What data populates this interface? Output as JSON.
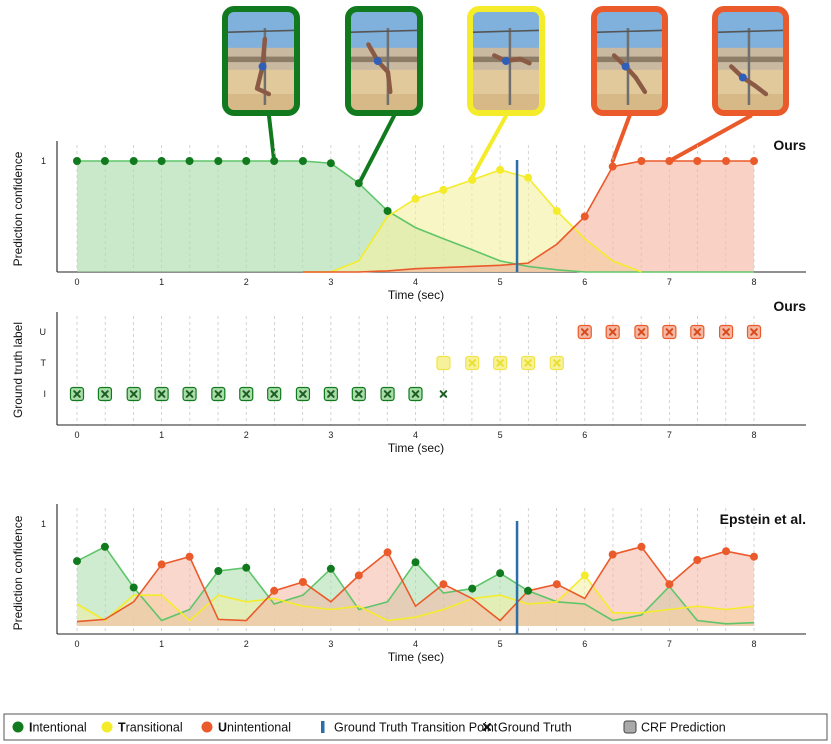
{
  "chart_data": [
    {
      "panel": "top",
      "type": "area",
      "title": "Ours",
      "xlabel": "Time (sec)",
      "ylabel": "Prediction confidence",
      "xlim": [
        0,
        8
      ],
      "ylim": [
        0,
        1
      ],
      "yticks": [
        {
          "v": 1,
          "label": "1"
        }
      ],
      "xticks": [
        "0",
        "1",
        "2",
        "3",
        "4",
        "5",
        "6",
        "7",
        "8"
      ],
      "transition_x": 5.2,
      "series": [
        {
          "key": "intentional",
          "x": [
            0,
            0.33,
            0.67,
            1,
            1.33,
            1.67,
            2,
            2.33,
            2.67,
            3,
            3.33,
            3.67,
            4,
            4.33,
            4.67,
            5,
            5.33,
            5.67,
            6,
            6.33,
            6.67,
            7,
            7.33,
            7.67,
            8
          ],
          "y": [
            1,
            1,
            1,
            1,
            1,
            1,
            1,
            1,
            1,
            0.98,
            0.8,
            0.55,
            0.4,
            0.3,
            0.2,
            0.1,
            0.05,
            0.02,
            0,
            0,
            0,
            0,
            0,
            0,
            0
          ]
        },
        {
          "key": "transitional",
          "x": [
            2.67,
            3,
            3.33,
            3.67,
            4,
            4.33,
            4.67,
            5,
            5.33,
            5.67,
            6,
            6.33,
            6.67
          ],
          "y": [
            0,
            0,
            0.1,
            0.5,
            0.66,
            0.74,
            0.83,
            0.92,
            0.85,
            0.55,
            0.3,
            0.1,
            0
          ]
        },
        {
          "key": "unintentional",
          "x": [
            2.67,
            3,
            3.33,
            3.67,
            4,
            4.33,
            4.67,
            5,
            5.33,
            5.67,
            6,
            6.33,
            6.67,
            7,
            7.33,
            7.67,
            8
          ],
          "y": [
            0,
            0,
            0,
            0.01,
            0.03,
            0.04,
            0.05,
            0.06,
            0.08,
            0.25,
            0.5,
            0.95,
            1,
            1,
            1,
            1,
            1
          ]
        }
      ],
      "marker_series": {
        "intentional": [
          0,
          0.33,
          0.67,
          1,
          1.33,
          1.67,
          2,
          2.33,
          2.67,
          3,
          3.33,
          3.67
        ],
        "transitional": [
          4,
          4.33,
          4.67,
          5,
          5.33,
          5.67
        ],
        "unintentional": [
          6,
          6.33,
          6.67,
          7,
          7.33,
          7.67,
          8
        ]
      }
    },
    {
      "panel": "middle",
      "type": "scatter",
      "title": "Ours",
      "xlabel": "Time (sec)",
      "ylabel": "Ground truth label",
      "xlim": [
        0,
        8
      ],
      "yticks": [
        "I",
        "T",
        "U"
      ],
      "xticks": [
        "0",
        "1",
        "2",
        "3",
        "4",
        "5",
        "6",
        "7",
        "8"
      ],
      "crf_prediction": [
        {
          "label": "I",
          "x": [
            0,
            0.33,
            0.67,
            1,
            1.33,
            1.67,
            2,
            2.33,
            2.67,
            3,
            3.33,
            3.67,
            4
          ]
        },
        {
          "label": "T",
          "x": [
            4.33,
            4.67,
            5,
            5.33,
            5.67
          ]
        },
        {
          "label": "U",
          "x": [
            6,
            6.33,
            6.67,
            7,
            7.33,
            7.67,
            8
          ]
        }
      ],
      "ground_truth": [
        {
          "label": "I",
          "x": [
            0,
            0.33,
            0.67,
            1,
            1.33,
            1.67,
            2,
            2.33,
            2.67,
            3,
            3.33,
            3.67,
            4,
            4.33
          ]
        },
        {
          "label": "T",
          "x": [
            4.67,
            5,
            5.33,
            5.67
          ]
        },
        {
          "label": "U",
          "x": [
            6,
            6.33,
            6.67,
            7,
            7.33,
            7.67,
            8
          ]
        }
      ]
    },
    {
      "panel": "bottom",
      "type": "area",
      "title": "Epstein et al.",
      "xlabel": "Time (sec)",
      "ylabel": "Prediction confidence",
      "xlim": [
        0,
        8
      ],
      "ylim": [
        0,
        1
      ],
      "yticks": [
        {
          "v": 1,
          "label": "1"
        }
      ],
      "xticks": [
        "0",
        "1",
        "2",
        "3",
        "4",
        "5",
        "6",
        "7",
        "8"
      ],
      "transition_x": 5.2,
      "x": [
        0,
        0.33,
        0.67,
        1,
        1.33,
        1.67,
        2,
        2.33,
        2.67,
        3,
        3.33,
        3.67,
        4,
        4.33,
        4.67,
        5,
        5.33,
        5.67,
        6,
        6.33,
        6.67,
        7,
        7.33,
        7.67,
        8
      ],
      "series": [
        {
          "key": "intentional",
          "y": [
            0.59,
            0.72,
            0.35,
            0.05,
            0.15,
            0.5,
            0.53,
            0.2,
            0.28,
            0.52,
            0.15,
            0.22,
            0.58,
            0.3,
            0.34,
            0.48,
            0.32,
            0.22,
            0.2,
            0.05,
            0.1,
            0.36,
            0.05,
            0.02,
            0.03
          ]
        },
        {
          "key": "transitional",
          "y": [
            0.2,
            0.05,
            0.28,
            0.28,
            0.05,
            0.28,
            0.22,
            0.25,
            0.18,
            0.15,
            0.18,
            0.05,
            0.08,
            0.15,
            0.25,
            0.28,
            0.2,
            0.22,
            0.46,
            0.12,
            0.12,
            0.15,
            0.18,
            0.15,
            0.18
          ]
        },
        {
          "key": "unintentional",
          "y": [
            0.04,
            0.06,
            0.22,
            0.56,
            0.63,
            0.06,
            0.05,
            0.32,
            0.4,
            0.22,
            0.46,
            0.67,
            0.18,
            0.38,
            0.25,
            0.05,
            0.32,
            0.38,
            0.25,
            0.65,
            0.72,
            0.38,
            0.6,
            0.68,
            0.63
          ]
        }
      ],
      "dominant": [
        "intentional",
        "intentional",
        "intentional",
        "unintentional",
        "unintentional",
        "intentional",
        "intentional",
        "unintentional",
        "unintentional",
        "intentional",
        "unintentional",
        "unintentional",
        "intentional",
        "unintentional",
        "intentional",
        "intentional",
        "intentional",
        "unintentional",
        "transitional",
        "unintentional",
        "unintentional",
        "unintentional",
        "unintentional",
        "unintentional",
        "unintentional"
      ]
    }
  ],
  "colors": {
    "intentional": "#117a1e",
    "intentional_line": "#5fc56a",
    "intentional_fill": "#a9dca9",
    "transitional": "#f4ec2a",
    "transitional_fill": "#f3f0a0",
    "unintentional": "#ea5a2a",
    "unintentional_fill": "#f5b7a2",
    "overlap_fill": "#d8c48c",
    "transition_line": "#2a6fa8",
    "gt_marker": "#1c5e22"
  },
  "thumbnails": [
    {
      "border": "intentional",
      "x": 2.33
    },
    {
      "border": "intentional",
      "x": 3.33
    },
    {
      "border": "transitional",
      "x": 4.67
    },
    {
      "border": "unintentional",
      "x": 6.33
    },
    {
      "border": "unintentional",
      "x": 7.0
    }
  ],
  "legend": {
    "items": [
      {
        "key": "intentional",
        "symbol": "dot",
        "first": "I",
        "rest": "ntentional"
      },
      {
        "key": "transitional",
        "symbol": "dot",
        "first": "T",
        "rest": "ransitional"
      },
      {
        "key": "unintentional",
        "symbol": "dot",
        "first": "U",
        "rest": "nintentional"
      },
      {
        "key": "transition",
        "symbol": "bar",
        "first": "",
        "rest": "Ground Truth Transition Point"
      },
      {
        "key": "gt",
        "symbol": "cross",
        "first": "",
        "rest": "Ground Truth"
      },
      {
        "key": "crf",
        "symbol": "square",
        "first": "",
        "rest": "CRF Prediction"
      }
    ]
  }
}
